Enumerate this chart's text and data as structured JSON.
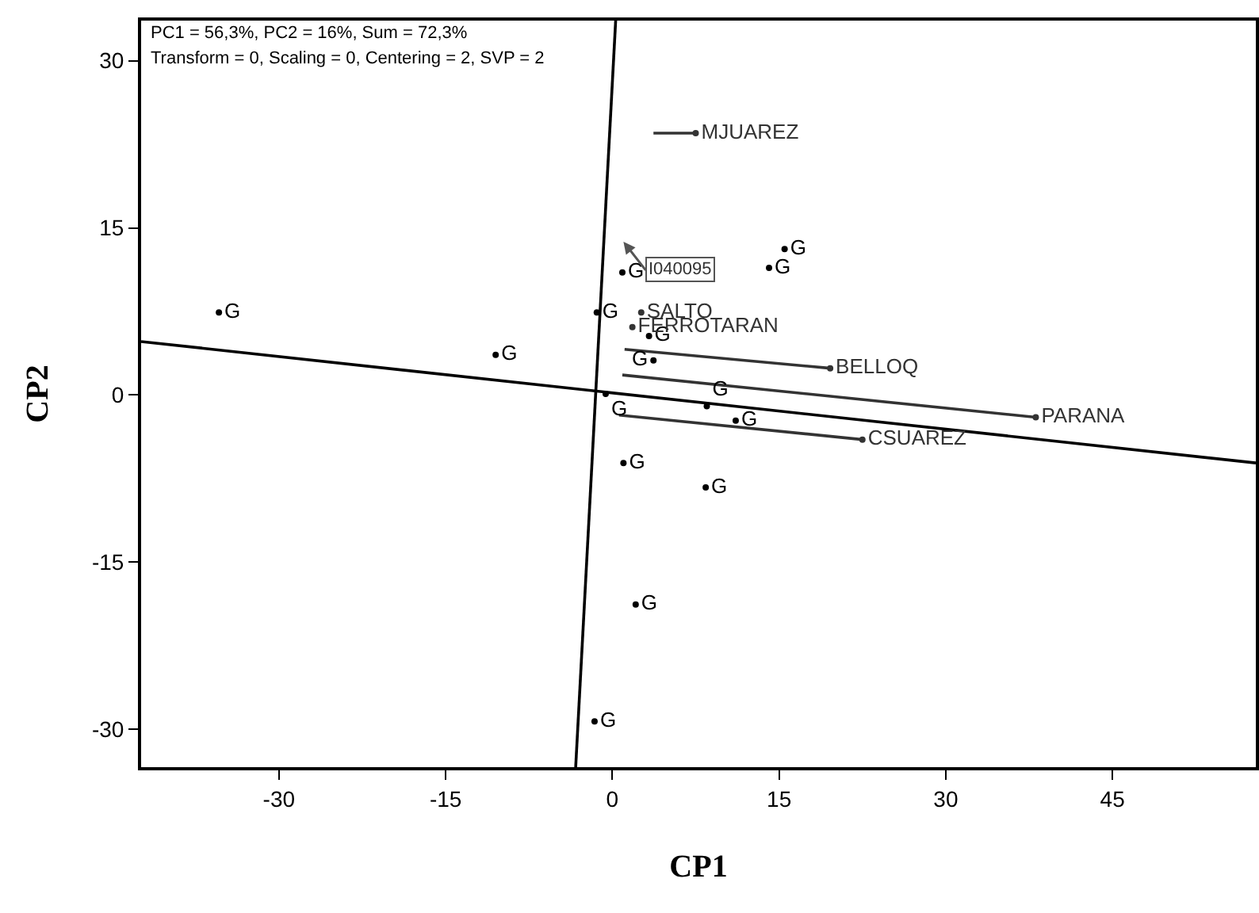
{
  "chart_data": {
    "type": "scatter",
    "xlabel": "CP1",
    "ylabel": "CP2",
    "xlim": [
      -42.4,
      57.9
    ],
    "ylim": [
      -33.4,
      33.6
    ],
    "xticks": [
      -30,
      -15,
      0,
      15,
      30,
      45
    ],
    "yticks": [
      -30,
      -15,
      0,
      15,
      30
    ],
    "annotations": [
      "PC1 = 56,3%, PC2 = 16%, Sum = 72,3%",
      "Transform = 0, Scaling = 0, Centering = 2, SVP = 2",
      {
        "text": "I040095",
        "x": 1.0,
        "y": 11.2
      }
    ],
    "series": [
      {
        "type": "line",
        "color": "#000000",
        "x": [
          -42.4,
          57.9
        ],
        "values": [
          4.8,
          -6.1
        ]
      },
      {
        "type": "line",
        "color": "#000000",
        "x": [
          0.3,
          -3.3
        ],
        "values": [
          33.6,
          -33.4
        ]
      },
      {
        "type": "line",
        "color": "#333333",
        "x": [
          3.7,
          7.5
        ],
        "values": [
          23.5,
          23.5
        ]
      },
      {
        "type": "line",
        "color": "#333333",
        "x": [
          1.1,
          19.6
        ],
        "values": [
          4.1,
          2.4
        ]
      },
      {
        "type": "line",
        "color": "#333333",
        "x": [
          0.9,
          38.1
        ],
        "values": [
          1.8,
          -2.0
        ]
      },
      {
        "type": "line",
        "color": "#333333",
        "x": [
          0.6,
          22.5
        ],
        "values": [
          -1.8,
          -4.0
        ]
      },
      {
        "marker": "circle",
        "color": "#000000",
        "x": [
          -35.4,
          -10.5,
          -1.4,
          0.9,
          -0.6,
          3.7,
          3.3,
          8.5,
          11.1,
          14.1,
          15.5,
          1.0,
          8.4,
          2.1,
          -1.6
        ],
        "values": [
          7.4,
          3.6,
          7.4,
          11.0,
          0.1,
          3.1,
          5.3,
          -1.0,
          -2.3,
          11.4,
          13.1,
          -6.1,
          -8.3,
          -18.8,
          -29.3
        ],
        "value_labels": [
          "G",
          "G",
          "G",
          "G",
          "G",
          "G",
          "G",
          "G",
          "G",
          "G",
          "G",
          "G",
          "G",
          "G",
          "G"
        ]
      },
      {
        "marker": "circle",
        "color": "#333333",
        "x": [
          7.5,
          2.6,
          1.8,
          19.6,
          38.1,
          22.5
        ],
        "values": [
          23.5,
          7.4,
          6.1,
          2.4,
          -2.0,
          -4.0
        ],
        "value_labels": [
          "MJUAREZ",
          "SALTO",
          "FERROTARAN",
          "BELLOQ",
          "PARANA",
          "CSUAREZ"
        ]
      }
    ]
  }
}
